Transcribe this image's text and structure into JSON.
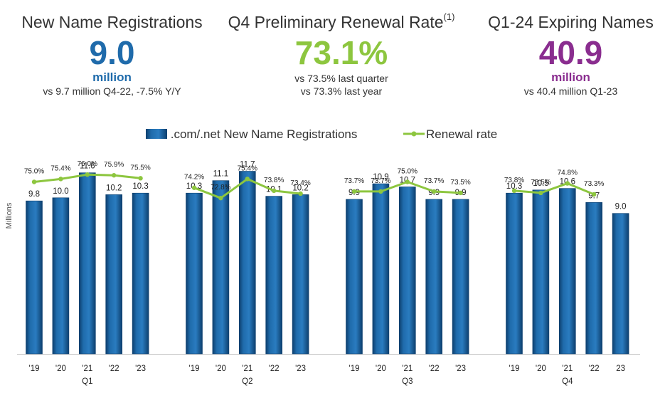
{
  "kpis": {
    "new_regs": {
      "title": "New Name Registrations",
      "value": "9.0",
      "unit": "million",
      "note": "vs 9.7 million Q4-22, -7.5% Y/Y",
      "color": "#1f6bab"
    },
    "renewal": {
      "title": "Q4 Preliminary Renewal Rate",
      "superscript": "(1)",
      "value": "73.1%",
      "note1": "vs 73.5% last quarter",
      "note2": "vs 73.3% last year",
      "color": "#8dc63f"
    },
    "expiring": {
      "title": "Q1-24 Expiring Names",
      "value": "40.9",
      "unit": "million",
      "note": "vs 40.4 million Q1-23",
      "color": "#8a2d8f"
    }
  },
  "chart_data": {
    "type": "bar",
    "ylabel": "Millions",
    "ylim": [
      0,
      13
    ],
    "legend": [
      " .com/.net New Name Registrations",
      "Renewal rate"
    ],
    "colors": {
      "bar": "#1f6bab",
      "bar_dark": "#0d3f6e",
      "line": "#8dc63f"
    },
    "groups": [
      {
        "quarter": "Q1",
        "years": [
          "'19",
          "'20",
          "'21",
          "'22",
          "'23"
        ],
        "registrations": [
          9.8,
          10.0,
          11.6,
          10.2,
          10.3
        ],
        "registration_labels": [
          "9.8",
          "10.0",
          "11.6",
          "10.2",
          "10.3"
        ],
        "renewal_rates": [
          75.0,
          75.4,
          76.0,
          75.9,
          75.5
        ],
        "renewal_labels": [
          "75.0%",
          "75.4%",
          "76.0%",
          "75.9%",
          "75.5%"
        ]
      },
      {
        "quarter": "Q2",
        "years": [
          "'19",
          "'20",
          "'21",
          "'22",
          "'23"
        ],
        "registrations": [
          10.3,
          11.1,
          11.7,
          10.1,
          10.2
        ],
        "registration_labels": [
          "10.3",
          "11.1",
          "11.7",
          "10.1",
          "10.2"
        ],
        "renewal_rates": [
          74.2,
          72.8,
          75.4,
          73.8,
          73.4
        ],
        "renewal_labels": [
          "74.2%",
          "72.8%",
          "75.4%",
          "73.8%",
          "73.4%"
        ]
      },
      {
        "quarter": "Q3",
        "years": [
          "'19",
          "'20",
          "'21",
          "'22",
          "'23"
        ],
        "registrations": [
          9.9,
          10.9,
          10.7,
          9.9,
          9.9
        ],
        "registration_labels": [
          "9.9",
          "10.9",
          "10.7",
          "9.9",
          "9.9"
        ],
        "renewal_rates": [
          73.7,
          73.7,
          75.0,
          73.7,
          73.5
        ],
        "renewal_labels": [
          "73.7%",
          "73.7%",
          "75.0%",
          "73.7%",
          "73.5%"
        ]
      },
      {
        "quarter": "Q4",
        "years": [
          "'19",
          "'20",
          "'21",
          "'22",
          "23"
        ],
        "registrations": [
          10.3,
          10.5,
          10.6,
          9.7,
          9.0
        ],
        "registration_labels": [
          "10.3",
          "10.5",
          "10.6",
          "9.7",
          "9.0"
        ],
        "renewal_rates": [
          73.8,
          73.5,
          74.8,
          73.3
        ],
        "renewal_labels": [
          "73.8%",
          "73.5%",
          "74.8%",
          "73.3%"
        ]
      }
    ]
  }
}
